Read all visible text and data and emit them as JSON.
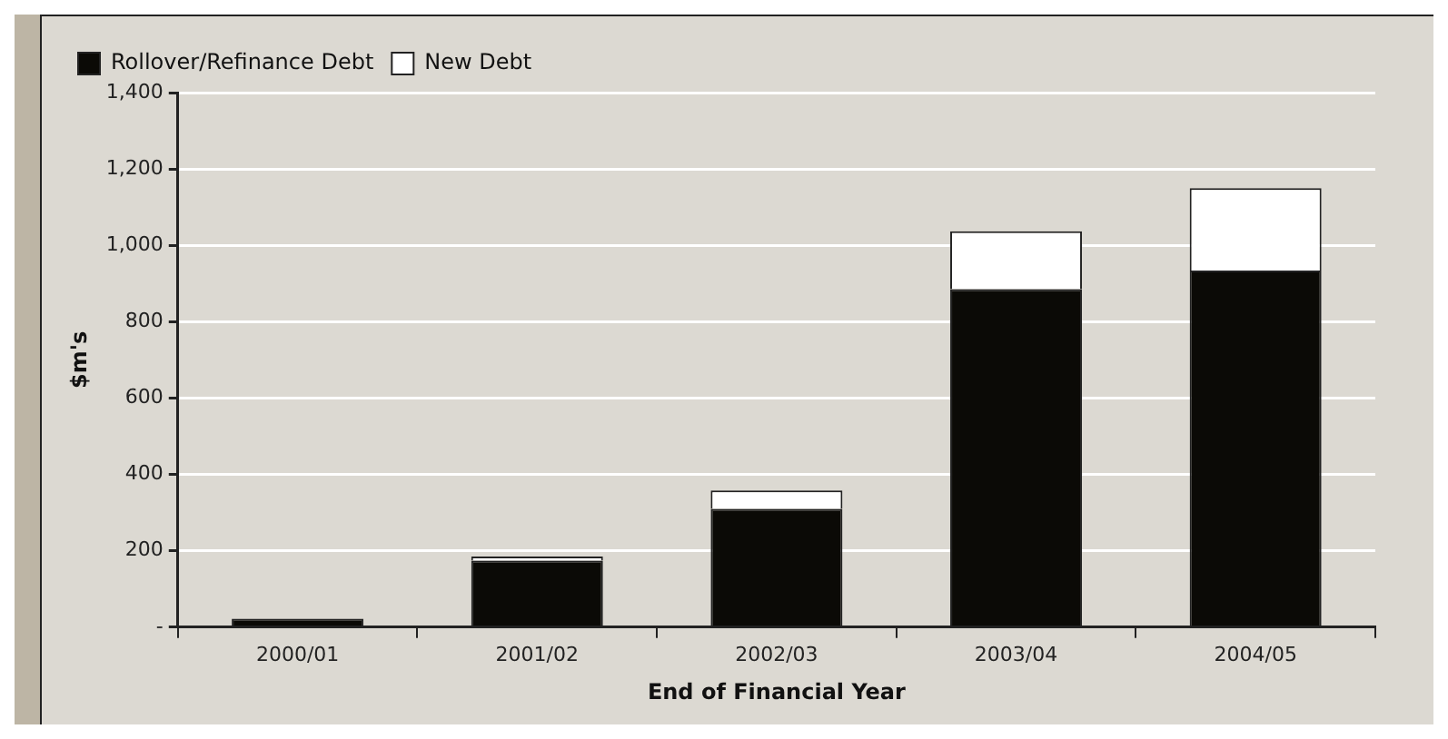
{
  "chart_data": {
    "type": "bar",
    "stacked": true,
    "xlabel": "End of Financial Year",
    "ylabel": "$m's",
    "categories": [
      "2000/01",
      "2001/02",
      "2002/03",
      "2003/04",
      "2004/05"
    ],
    "series": [
      {
        "name": "Rollover/Refinance Debt",
        "color": "#0b0a06",
        "values": [
          22,
          174,
          310,
          885,
          934
        ]
      },
      {
        "name": "New Debt",
        "color": "#ffffff",
        "values": [
          0,
          11,
          48,
          152,
          216
        ]
      }
    ],
    "ylim": [
      0,
      1400
    ],
    "yticks": [
      {
        "value": 0,
        "label": "-"
      },
      200,
      400,
      600,
      800,
      {
        "value": 1000,
        "label": "1,000"
      },
      {
        "value": 1200,
        "label": "1,200"
      },
      {
        "value": 1400,
        "label": "1,400"
      }
    ],
    "grid": "y",
    "legend": "top left"
  }
}
